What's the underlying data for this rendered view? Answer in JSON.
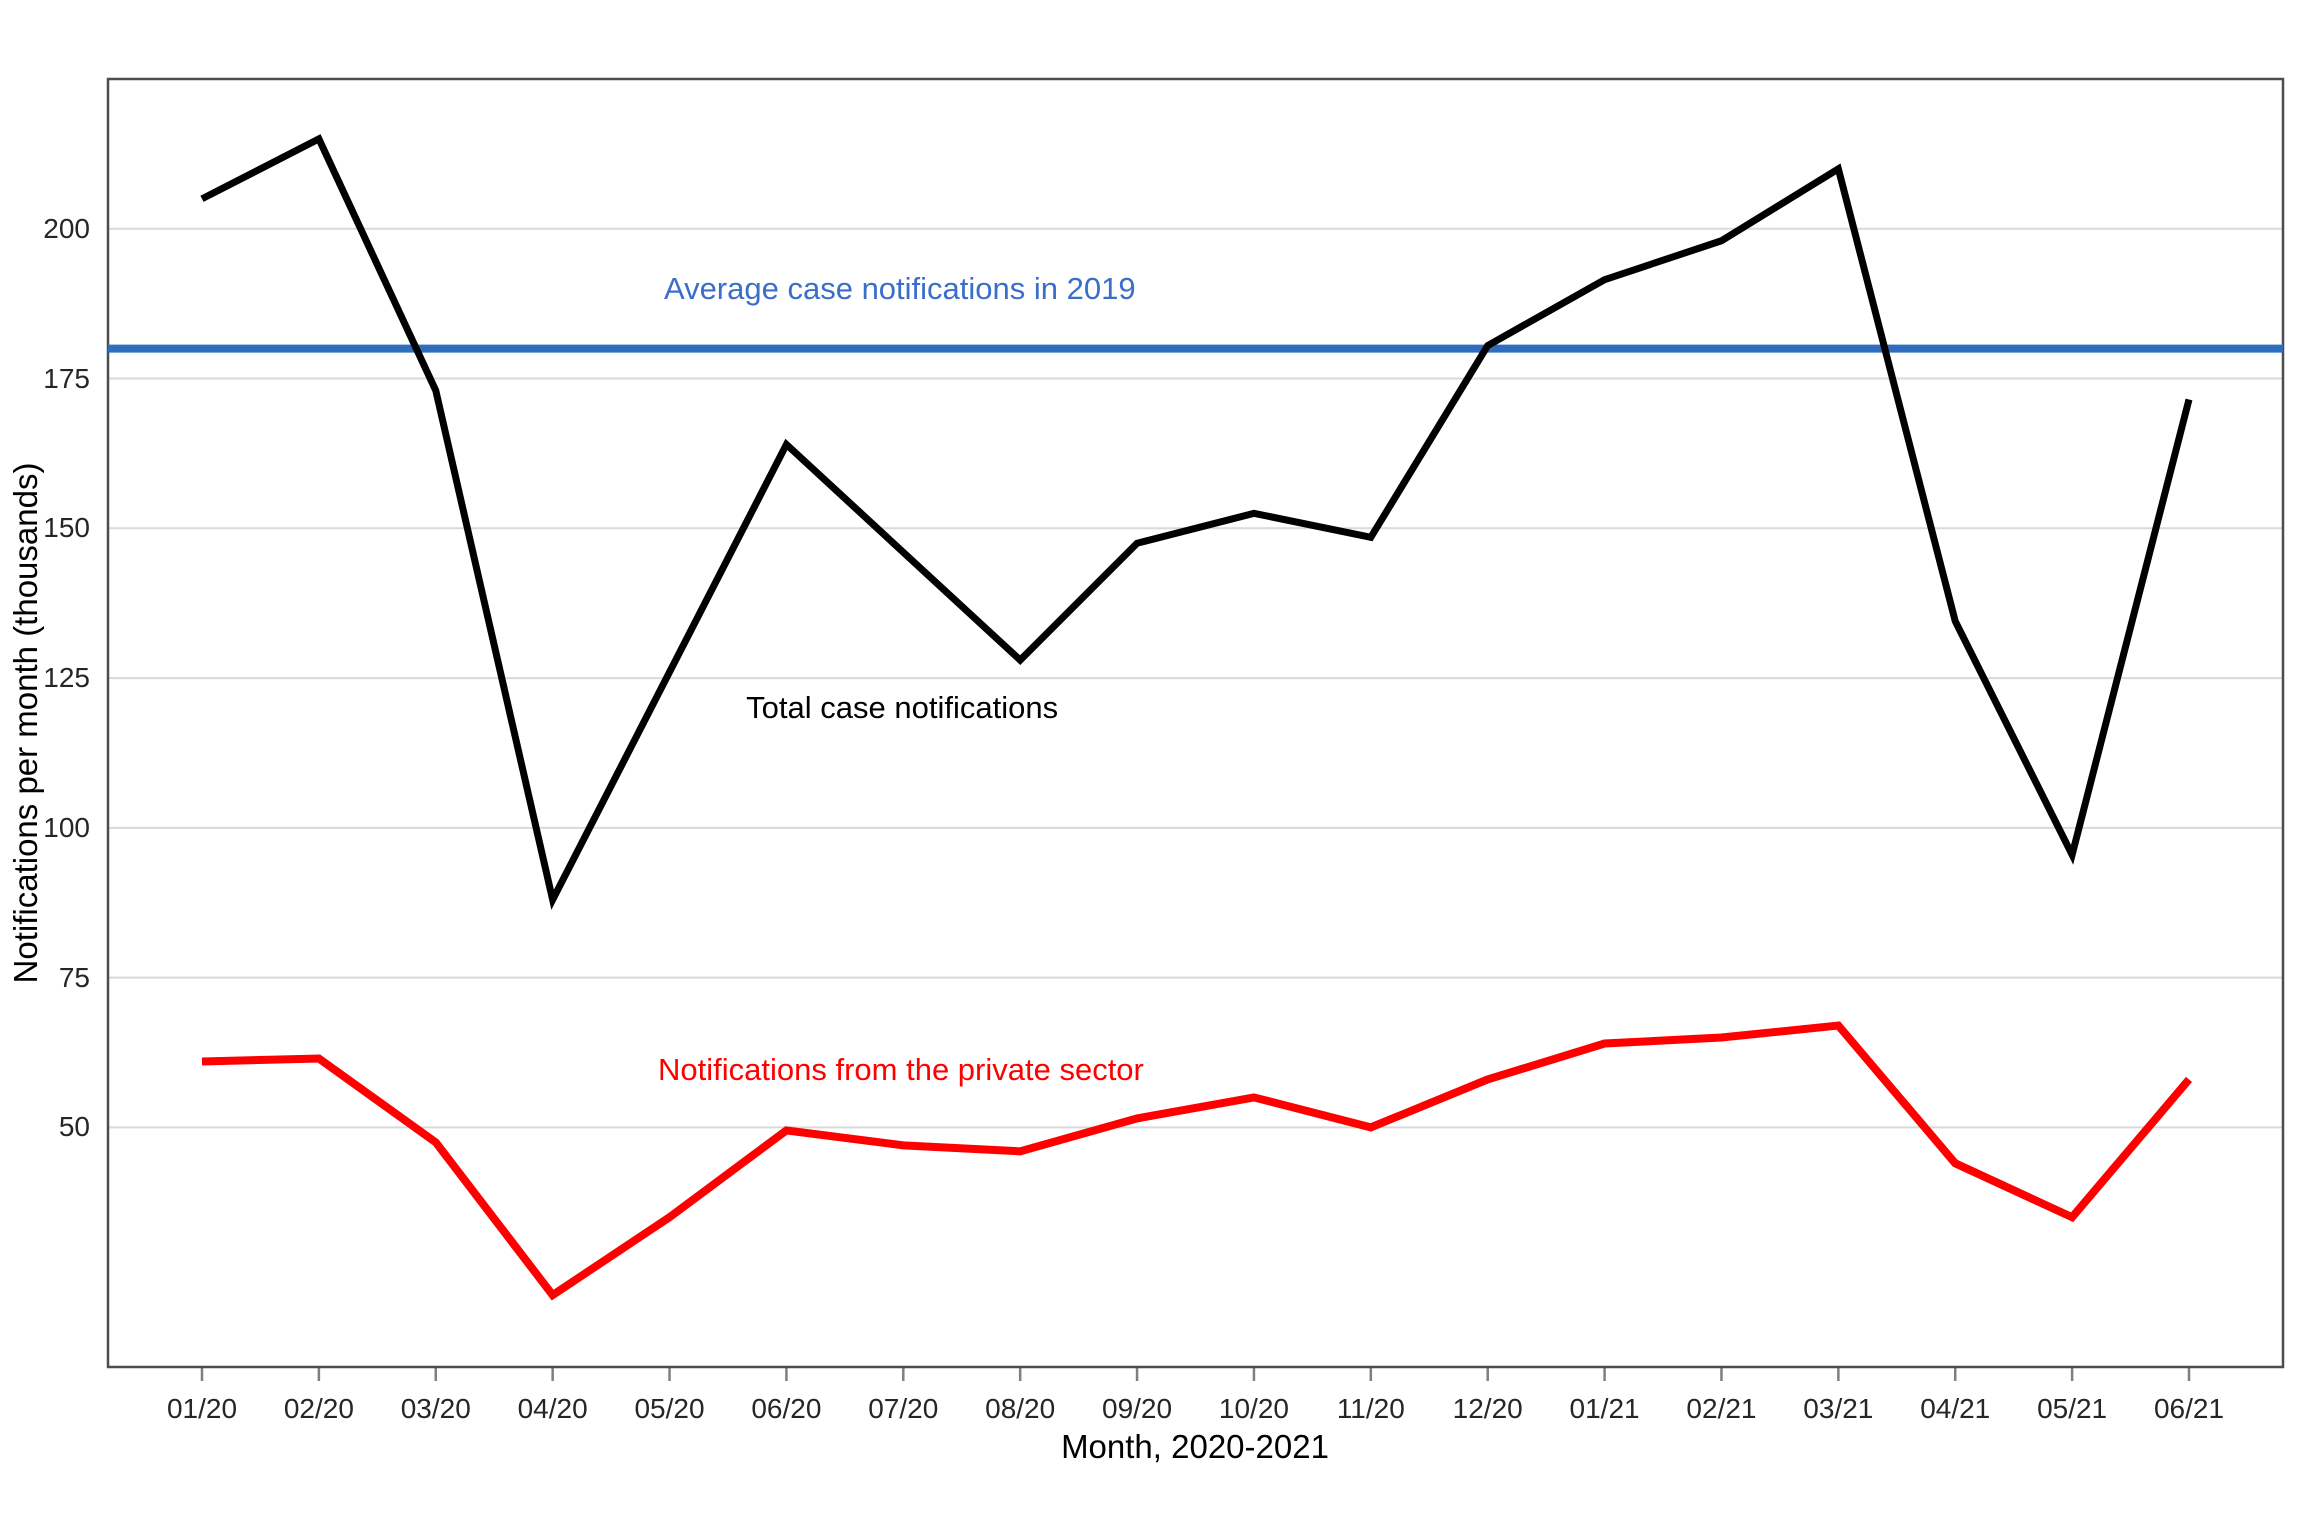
{
  "page": {
    "background": "#FFFFFF"
  },
  "chart_data": {
    "type": "line",
    "title": "",
    "xlabel": "Month, 2020-2021",
    "ylabel": "Notifications per month (thousands)",
    "categories": [
      "01/20",
      "02/20",
      "03/20",
      "04/20",
      "05/20",
      "06/20",
      "07/20",
      "08/20",
      "09/20",
      "10/20",
      "11/20",
      "12/20",
      "01/21",
      "02/21",
      "03/21",
      "04/21",
      "05/21",
      "06/21"
    ],
    "series": [
      {
        "name": "Total case notifications",
        "color": "#000000",
        "stroke_width": 7,
        "values": [
          205,
          215,
          173,
          88,
          126,
          164,
          146,
          128,
          147.5,
          152.5,
          148.5,
          180.5,
          191.5,
          198,
          210,
          134.5,
          95.5,
          171.5
        ]
      },
      {
        "name": "Notifications from the private sector",
        "color": "#FF0000",
        "stroke_width": 8,
        "values": [
          61,
          61.5,
          47.5,
          22,
          35,
          49.5,
          47,
          46,
          51.5,
          55,
          50,
          58,
          64,
          65,
          67,
          44,
          35,
          58
        ]
      }
    ],
    "reference_line": {
      "value": 180,
      "color": "#2E6DBE",
      "stroke_width": 8
    },
    "y_ticks": [
      "50",
      "75",
      "100",
      "125",
      "150",
      "175",
      "200"
    ],
    "y_tick_values": [
      50,
      75,
      100,
      125,
      150,
      175,
      200
    ],
    "ylim": [
      10,
      225
    ],
    "grid": "horizontal",
    "gridline_color": "#D9D9D9",
    "border_color": "#4D4D4D",
    "tick_color": "#7F7F7F",
    "legend_position": "none (series labeled directly on plot)",
    "annotations": [
      {
        "text": "Average case notifications in 2019",
        "color": "#3A6EC9",
        "x": 5.97,
        "y": 190
      },
      {
        "text": "Total case notifications",
        "color": "#000000",
        "x": 5.99,
        "y": 120
      },
      {
        "text": "Notifications from the private sector",
        "color": "#FF0000",
        "x": 5.98,
        "y": 59.5
      }
    ]
  }
}
